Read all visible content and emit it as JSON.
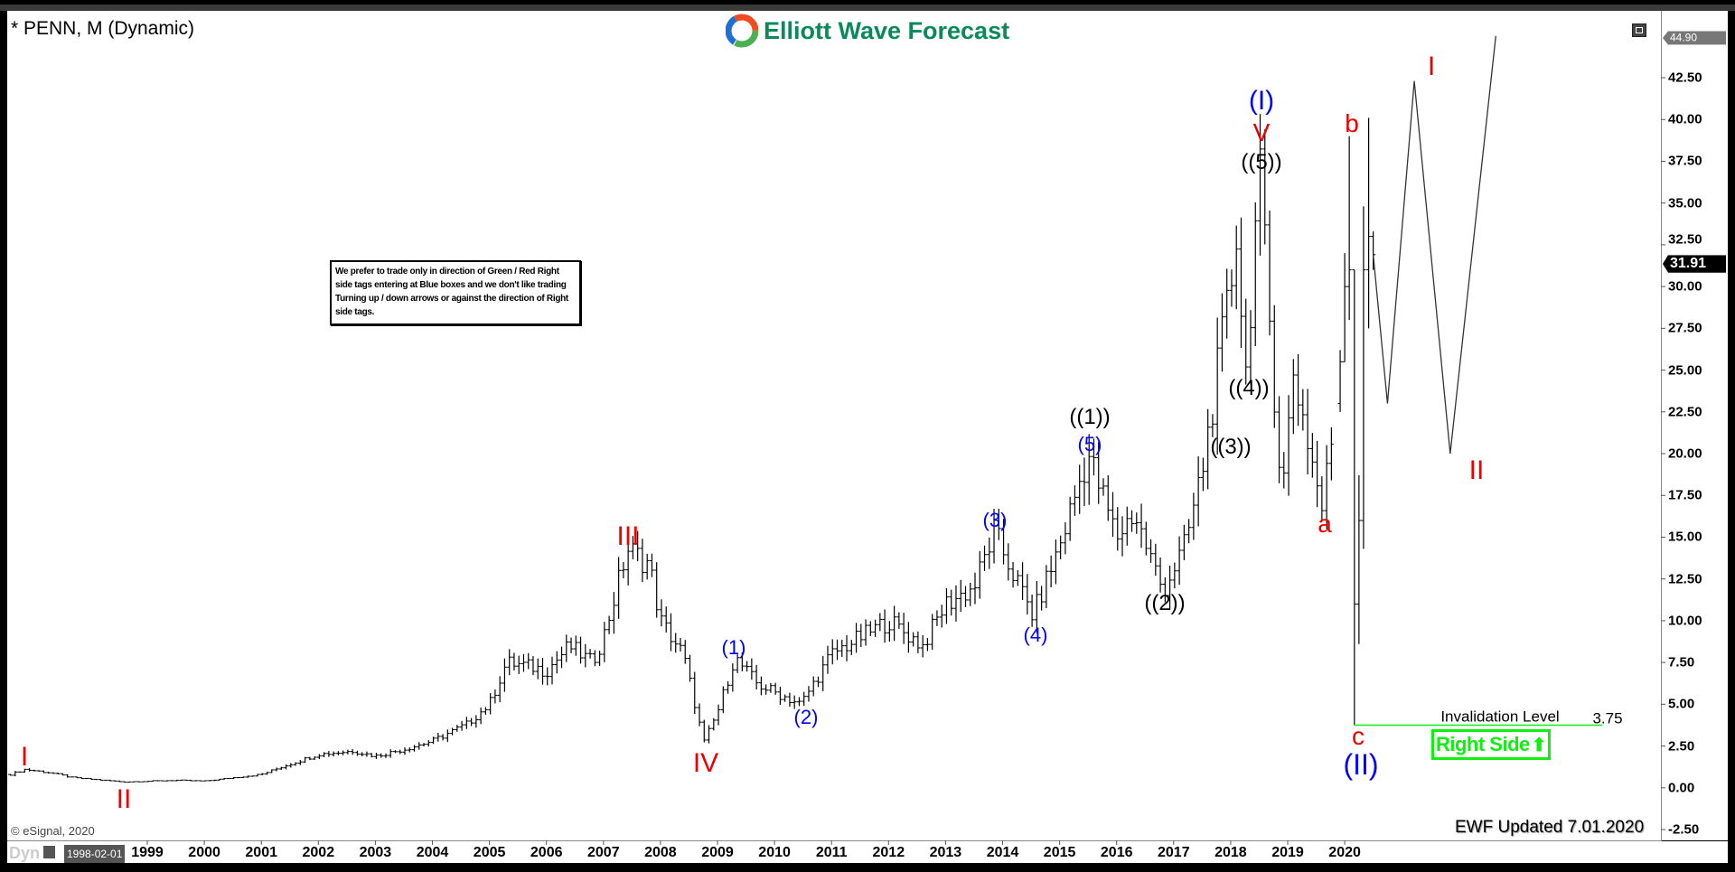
{
  "header": {
    "title": "* PENN, M (Dynamic)",
    "logo_text": "Elliott Wave Forecast"
  },
  "note": "We prefer to trade only in direction of Green / Red Right side tags entering at Blue boxes and we don't like trading Turning up / down arrows or against the direction of Right side tags.",
  "footer": {
    "copyright": "© eSignal, 2020",
    "updated": "EWF Updated 7.01.2020",
    "dyn_label": "Dyn",
    "cursor_date": "1998-02-01"
  },
  "invalidation": {
    "label": "Invalidation Level",
    "value": "3.75",
    "price": 3.75
  },
  "right_side": {
    "label": "Right Side",
    "arrow": "⬆",
    "color": "#11ee11"
  },
  "wave_labels": [
    "I",
    "II",
    "III",
    "IV",
    "(1)",
    "(2)",
    "(3)",
    "(4)",
    "(5)",
    "((1))",
    "((2))",
    "((3))",
    "((4))",
    "((5))",
    "V",
    "(I)",
    "b",
    "a",
    "c",
    "(II)",
    "I",
    "II"
  ],
  "colors": {
    "red": "#ee0000",
    "blue": "#0000ff",
    "green": "#11ee11",
    "bar": "#000000",
    "logo": "#0a8a5a"
  },
  "chart_data": {
    "type": "ohlc",
    "symbol": "PENN",
    "interval": "M",
    "ylim": [
      -2.5,
      45
    ],
    "y_ticks": [
      "42.50",
      "40.00",
      "37.50",
      "35.00",
      "32.50",
      "30.00",
      "27.50",
      "25.00",
      "22.50",
      "20.00",
      "17.50",
      "15.00",
      "12.50",
      "10.00",
      "7.50",
      "5.00",
      "2.50",
      "0.00",
      "-2.50"
    ],
    "x_ticks": [
      "1999",
      "2000",
      "2001",
      "2002",
      "2003",
      "2004",
      "2005",
      "2006",
      "2007",
      "2008",
      "2009",
      "2010",
      "2011",
      "2012",
      "2013",
      "2014",
      "2015",
      "2016",
      "2017",
      "2018",
      "2019",
      "2020"
    ],
    "last_price": "31.91",
    "top_price": "44.90",
    "path_pivots": [
      [
        1996.6,
        0.8
      ],
      [
        1996.85,
        1.1
      ],
      [
        1997.3,
        0.9
      ],
      [
        1997.7,
        0.6
      ],
      [
        1998.6,
        0.35
      ],
      [
        1999.5,
        0.45
      ],
      [
        2000.0,
        0.4
      ],
      [
        2000.5,
        0.6
      ],
      [
        2001.0,
        0.8
      ],
      [
        2001.4,
        1.3
      ],
      [
        2002.0,
        2.0
      ],
      [
        2002.6,
        2.2
      ],
      [
        2003.0,
        1.9
      ],
      [
        2003.5,
        2.3
      ],
      [
        2004.0,
        2.8
      ],
      [
        2004.6,
        3.8
      ],
      [
        2005.0,
        5.0
      ],
      [
        2005.3,
        7.5
      ],
      [
        2005.8,
        7.2
      ],
      [
        2006.0,
        7.0
      ],
      [
        2006.4,
        8.5
      ],
      [
        2006.8,
        7.5
      ],
      [
        2007.0,
        9.0
      ],
      [
        2007.42,
        14.3
      ],
      [
        2007.8,
        13.4
      ],
      [
        2008.0,
        10.0
      ],
      [
        2008.4,
        8.0
      ],
      [
        2008.76,
        2.7
      ],
      [
        2009.0,
        4.5
      ],
      [
        2009.3,
        7.8
      ],
      [
        2009.7,
        6.2
      ],
      [
        2010.46,
        5.0
      ],
      [
        2011.0,
        8.0
      ],
      [
        2011.6,
        9.2
      ],
      [
        2012.0,
        10.0
      ],
      [
        2012.6,
        8.5
      ],
      [
        2013.0,
        11.0
      ],
      [
        2013.5,
        12.0
      ],
      [
        2013.85,
        15.3
      ],
      [
        2014.53,
        10.3
      ],
      [
        2015.0,
        14.5
      ],
      [
        2015.5,
        20.0
      ],
      [
        2016.0,
        15.0
      ],
      [
        2016.3,
        16.5
      ],
      [
        2016.81,
        11.8
      ],
      [
        2017.2,
        14.5
      ],
      [
        2017.5,
        19.0
      ],
      [
        2018.0,
        30.0
      ],
      [
        2018.1,
        33.5
      ],
      [
        2018.26,
        24.5
      ],
      [
        2018.5,
        37.0
      ],
      [
        2018.9,
        17.3
      ],
      [
        2019.1,
        25.0
      ],
      [
        2019.6,
        16.7
      ],
      [
        2019.84,
        22.5
      ]
    ],
    "recent_bars": [
      [
        2019.92,
        23,
        26.2,
        22.5,
        25.5
      ],
      [
        2020.0,
        25.5,
        32,
        25.5,
        30
      ],
      [
        2020.08,
        30,
        39,
        28,
        31
      ],
      [
        2020.17,
        31,
        31,
        3.75,
        11
      ],
      [
        2020.25,
        11,
        18.7,
        8.6,
        16
      ],
      [
        2020.33,
        16,
        34.8,
        14.3,
        31
      ],
      [
        2020.42,
        31,
        40.1,
        27.5,
        33
      ],
      [
        2020.5,
        33,
        33.3,
        31,
        31.91
      ]
    ],
    "projection": [
      [
        2020.5,
        31.91
      ],
      [
        2020.75,
        23.0
      ],
      [
        2021.22,
        42.3
      ],
      [
        2021.85,
        20.0
      ],
      [
        2022.65,
        45.0
      ]
    ]
  }
}
